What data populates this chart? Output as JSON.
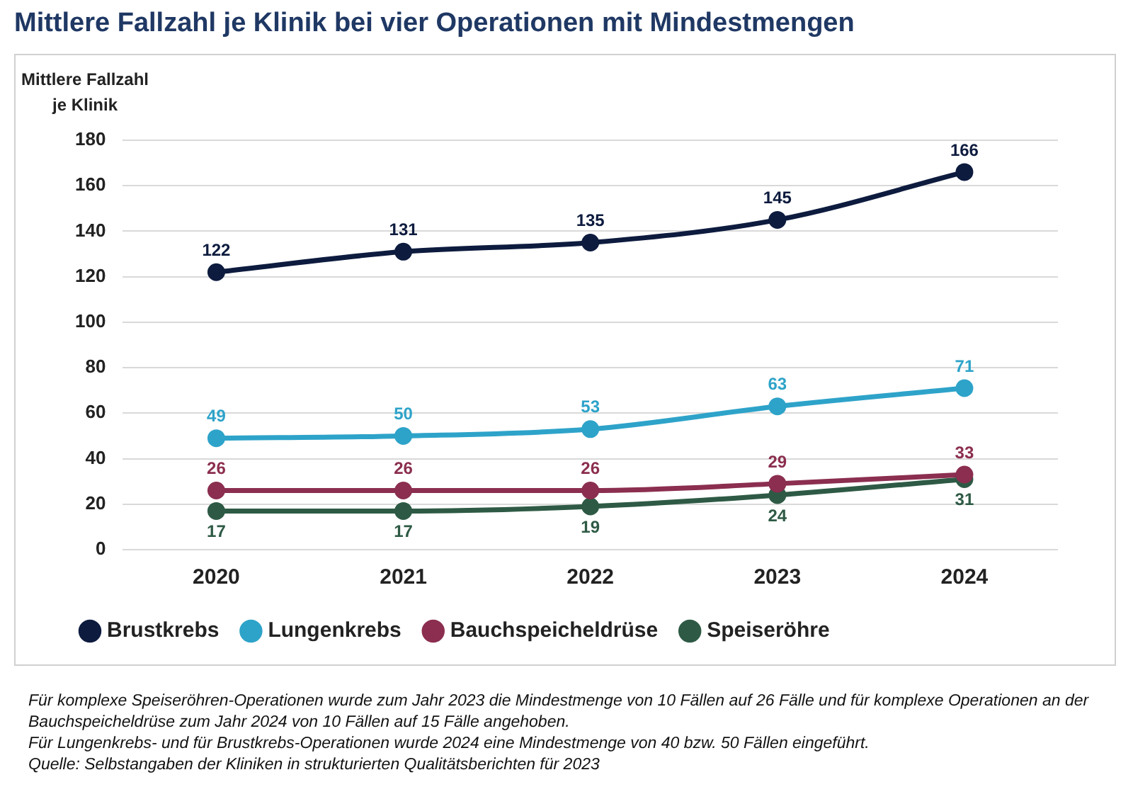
{
  "chart_data": {
    "type": "line",
    "title": "Mittlere Fallzahl je Klinik bei vier Operationen mit Mindestmengen",
    "ylabel": "Mittlere Fallzahl\nje Klinik",
    "categories": [
      "2020",
      "2021",
      "2022",
      "2023",
      "2024"
    ],
    "series": [
      {
        "name": "Brustkrebs",
        "color": "#0d1b3e",
        "values": [
          122,
          131,
          135,
          145,
          166
        ]
      },
      {
        "name": "Lungenkrebs",
        "color": "#2ea3c9",
        "values": [
          49,
          50,
          53,
          63,
          71
        ]
      },
      {
        "name": "Bauchspeicheldrüse",
        "color": "#8b2e4f",
        "values": [
          26,
          26,
          26,
          29,
          33
        ]
      },
      {
        "name": "Speiseröhre",
        "color": "#2e5a45",
        "values": [
          17,
          17,
          19,
          24,
          31
        ]
      }
    ],
    "ylim": [
      0,
      180
    ],
    "yticks": [
      0,
      20,
      40,
      60,
      80,
      100,
      120,
      140,
      160,
      180
    ],
    "grid": "y",
    "legend": "bottom",
    "marker": "circle",
    "line_style": "solid",
    "data_labels": true,
    "annotations": [
      "Für komplexe Speiseröhren-Operationen wurde zum Jahr 2023 die Mindestmenge von 10 Fällen auf 26 Fälle und für komplexe Operationen an der Bauchspeicheldrüse zum Jahr 2024 von 10 Fällen auf 15 Fälle angehoben.",
      "Für Lungenkrebs- und für Brustkrebs-Operationen wurde 2024 eine Mindestmenge von 40 bzw. 50 Fällen eingeführt.",
      "Quelle: Selbstangaben der Kliniken in strukturierten Qualitätsberichten für 2023"
    ]
  }
}
